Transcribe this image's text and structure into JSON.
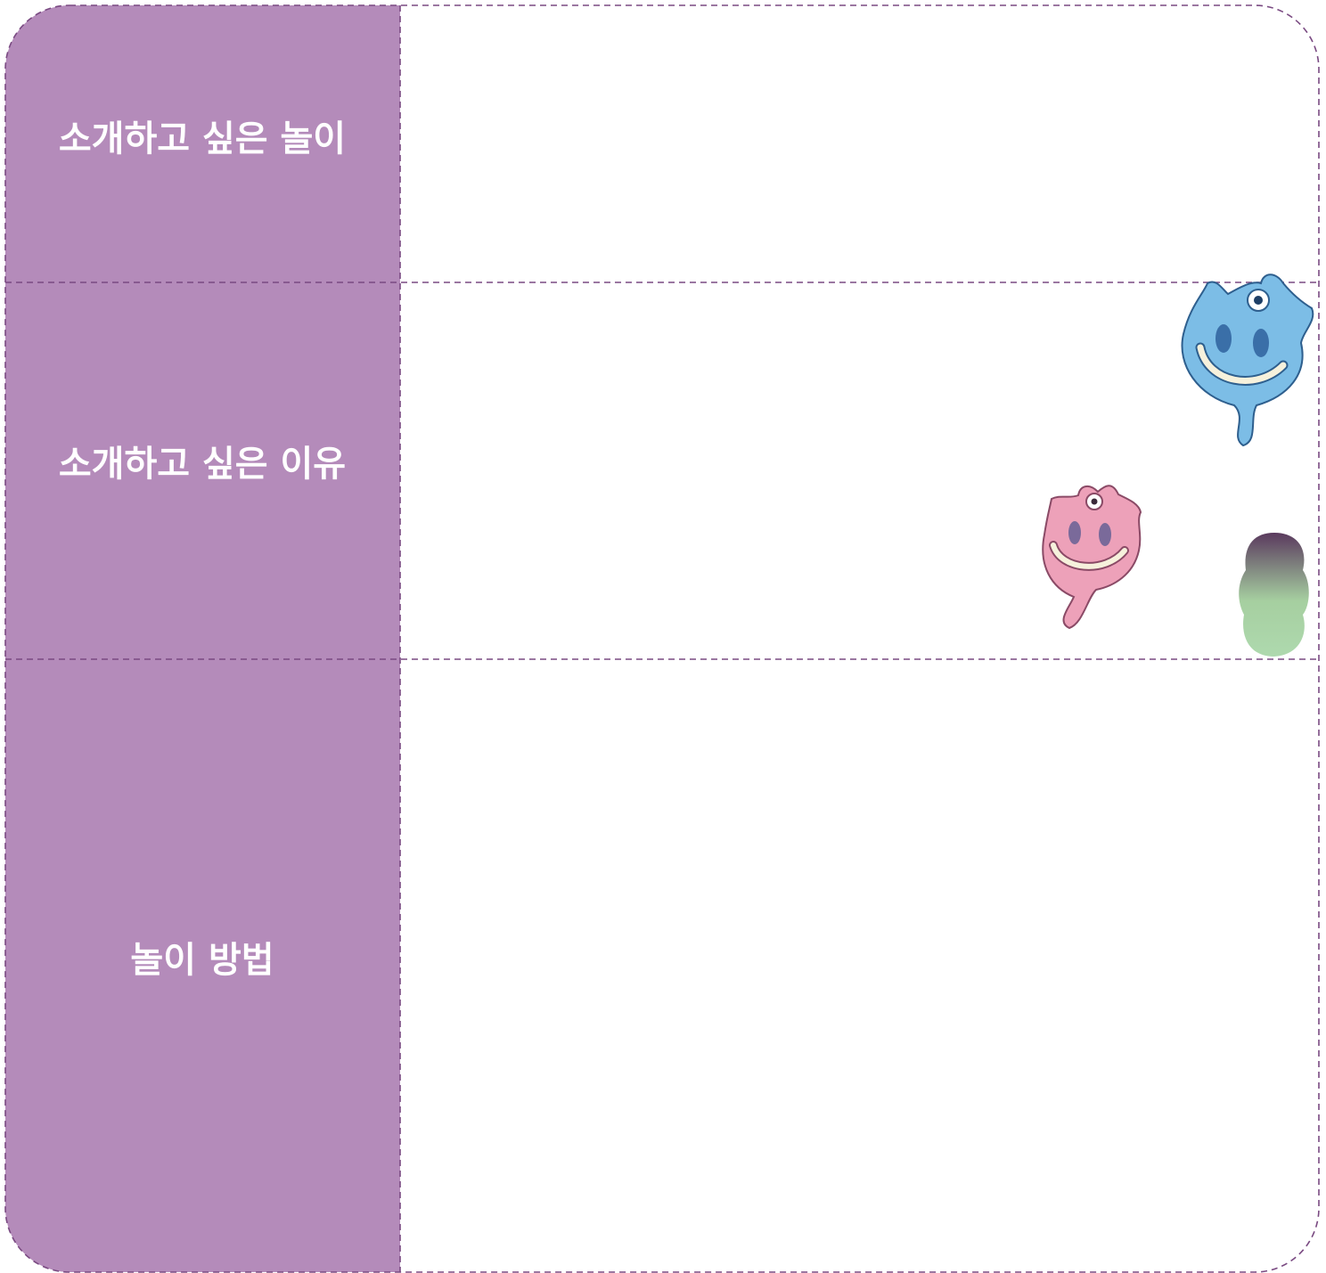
{
  "table": {
    "rows": [
      [
        "소개하고 싶은 놀이"
      ],
      [
        "소개하고 싶은 이유"
      ],
      [
        "놀이 방법"
      ]
    ]
  }
}
